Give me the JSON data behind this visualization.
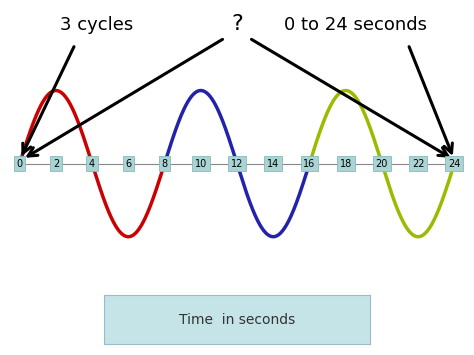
{
  "text_3cycles": "3 cycles",
  "text_question": "?",
  "text_range": "0 to 24 seconds",
  "text_time": "Time  in seconds",
  "x_min": 0,
  "x_max": 24,
  "amplitude": 1.0,
  "wave_period": 8,
  "tick_labels": [
    0,
    2,
    4,
    6,
    8,
    10,
    12,
    14,
    16,
    18,
    20,
    22,
    24
  ],
  "wave1_color": "#cc0000",
  "wave2_color": "#2222aa",
  "wave3_color": "#99bb00",
  "bg_wave_color": "#b0b0b0",
  "bg_color": "#ffffff",
  "tick_box_color": "#aad4d4",
  "arrow_color": "#000000",
  "fontsize_labels": 13,
  "fontsize_ticks": 7,
  "fontsize_time": 10
}
